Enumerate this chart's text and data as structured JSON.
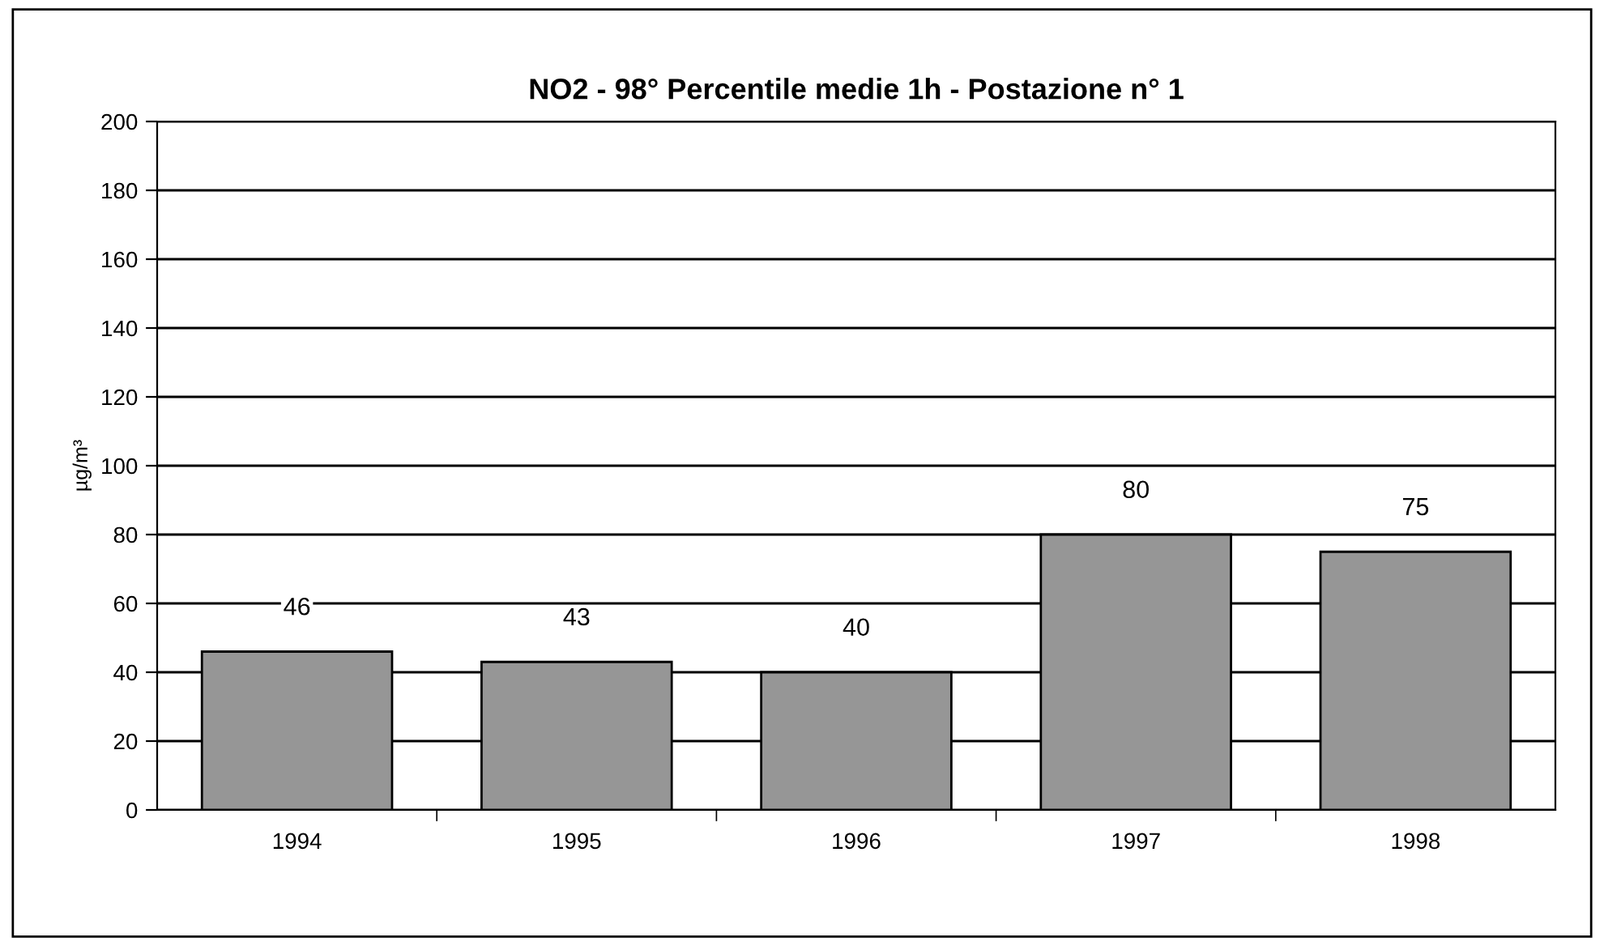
{
  "chart_data": {
    "type": "bar",
    "title": "NO2 - 98° Percentile medie 1h - Postazione n° 1",
    "ylabel": "µg/m³",
    "categories": [
      "1994",
      "1995",
      "1996",
      "1997",
      "1998"
    ],
    "values": [
      46,
      43,
      40,
      80,
      75
    ],
    "color": "#969696",
    "ylim": [
      0,
      200
    ],
    "yticks": [
      0,
      20,
      40,
      60,
      80,
      100,
      120,
      140,
      160,
      180,
      200
    ],
    "grid": "y",
    "data_labels": true
  }
}
